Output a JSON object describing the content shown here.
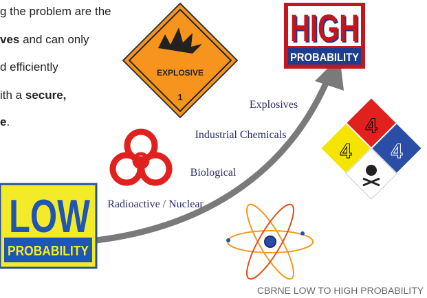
{
  "paragraph": {
    "lines": [
      [
        {
          "text": "g the problem are the"
        }
      ],
      [
        {
          "text": "ves",
          "bold": true
        },
        {
          "text": " and can only"
        }
      ],
      [
        {
          "text": "d efficiently"
        }
      ],
      [
        {
          "text": "ith a "
        },
        {
          "text": "secure,",
          "bold": true
        }
      ],
      [
        {
          "text": "e",
          "bold": true
        },
        {
          "text": "."
        }
      ]
    ]
  },
  "explosive_sign": {
    "label": "EXPLOSIVE",
    "class": "1"
  },
  "high_badge": {
    "word": "HIGH",
    "subtitle": "PROBABILITY"
  },
  "low_badge": {
    "word": "LOW",
    "subtitle": "PROBABILITY"
  },
  "threats": [
    "Explosives",
    "Industrial Chemicals",
    "Biological",
    "Radioactive / Nuclear"
  ],
  "hazard_diamond": {
    "health": "4",
    "fire": "4",
    "reactivity": "4"
  },
  "caption": "CBRNE LOW TO HIGH PROBABILITY"
}
